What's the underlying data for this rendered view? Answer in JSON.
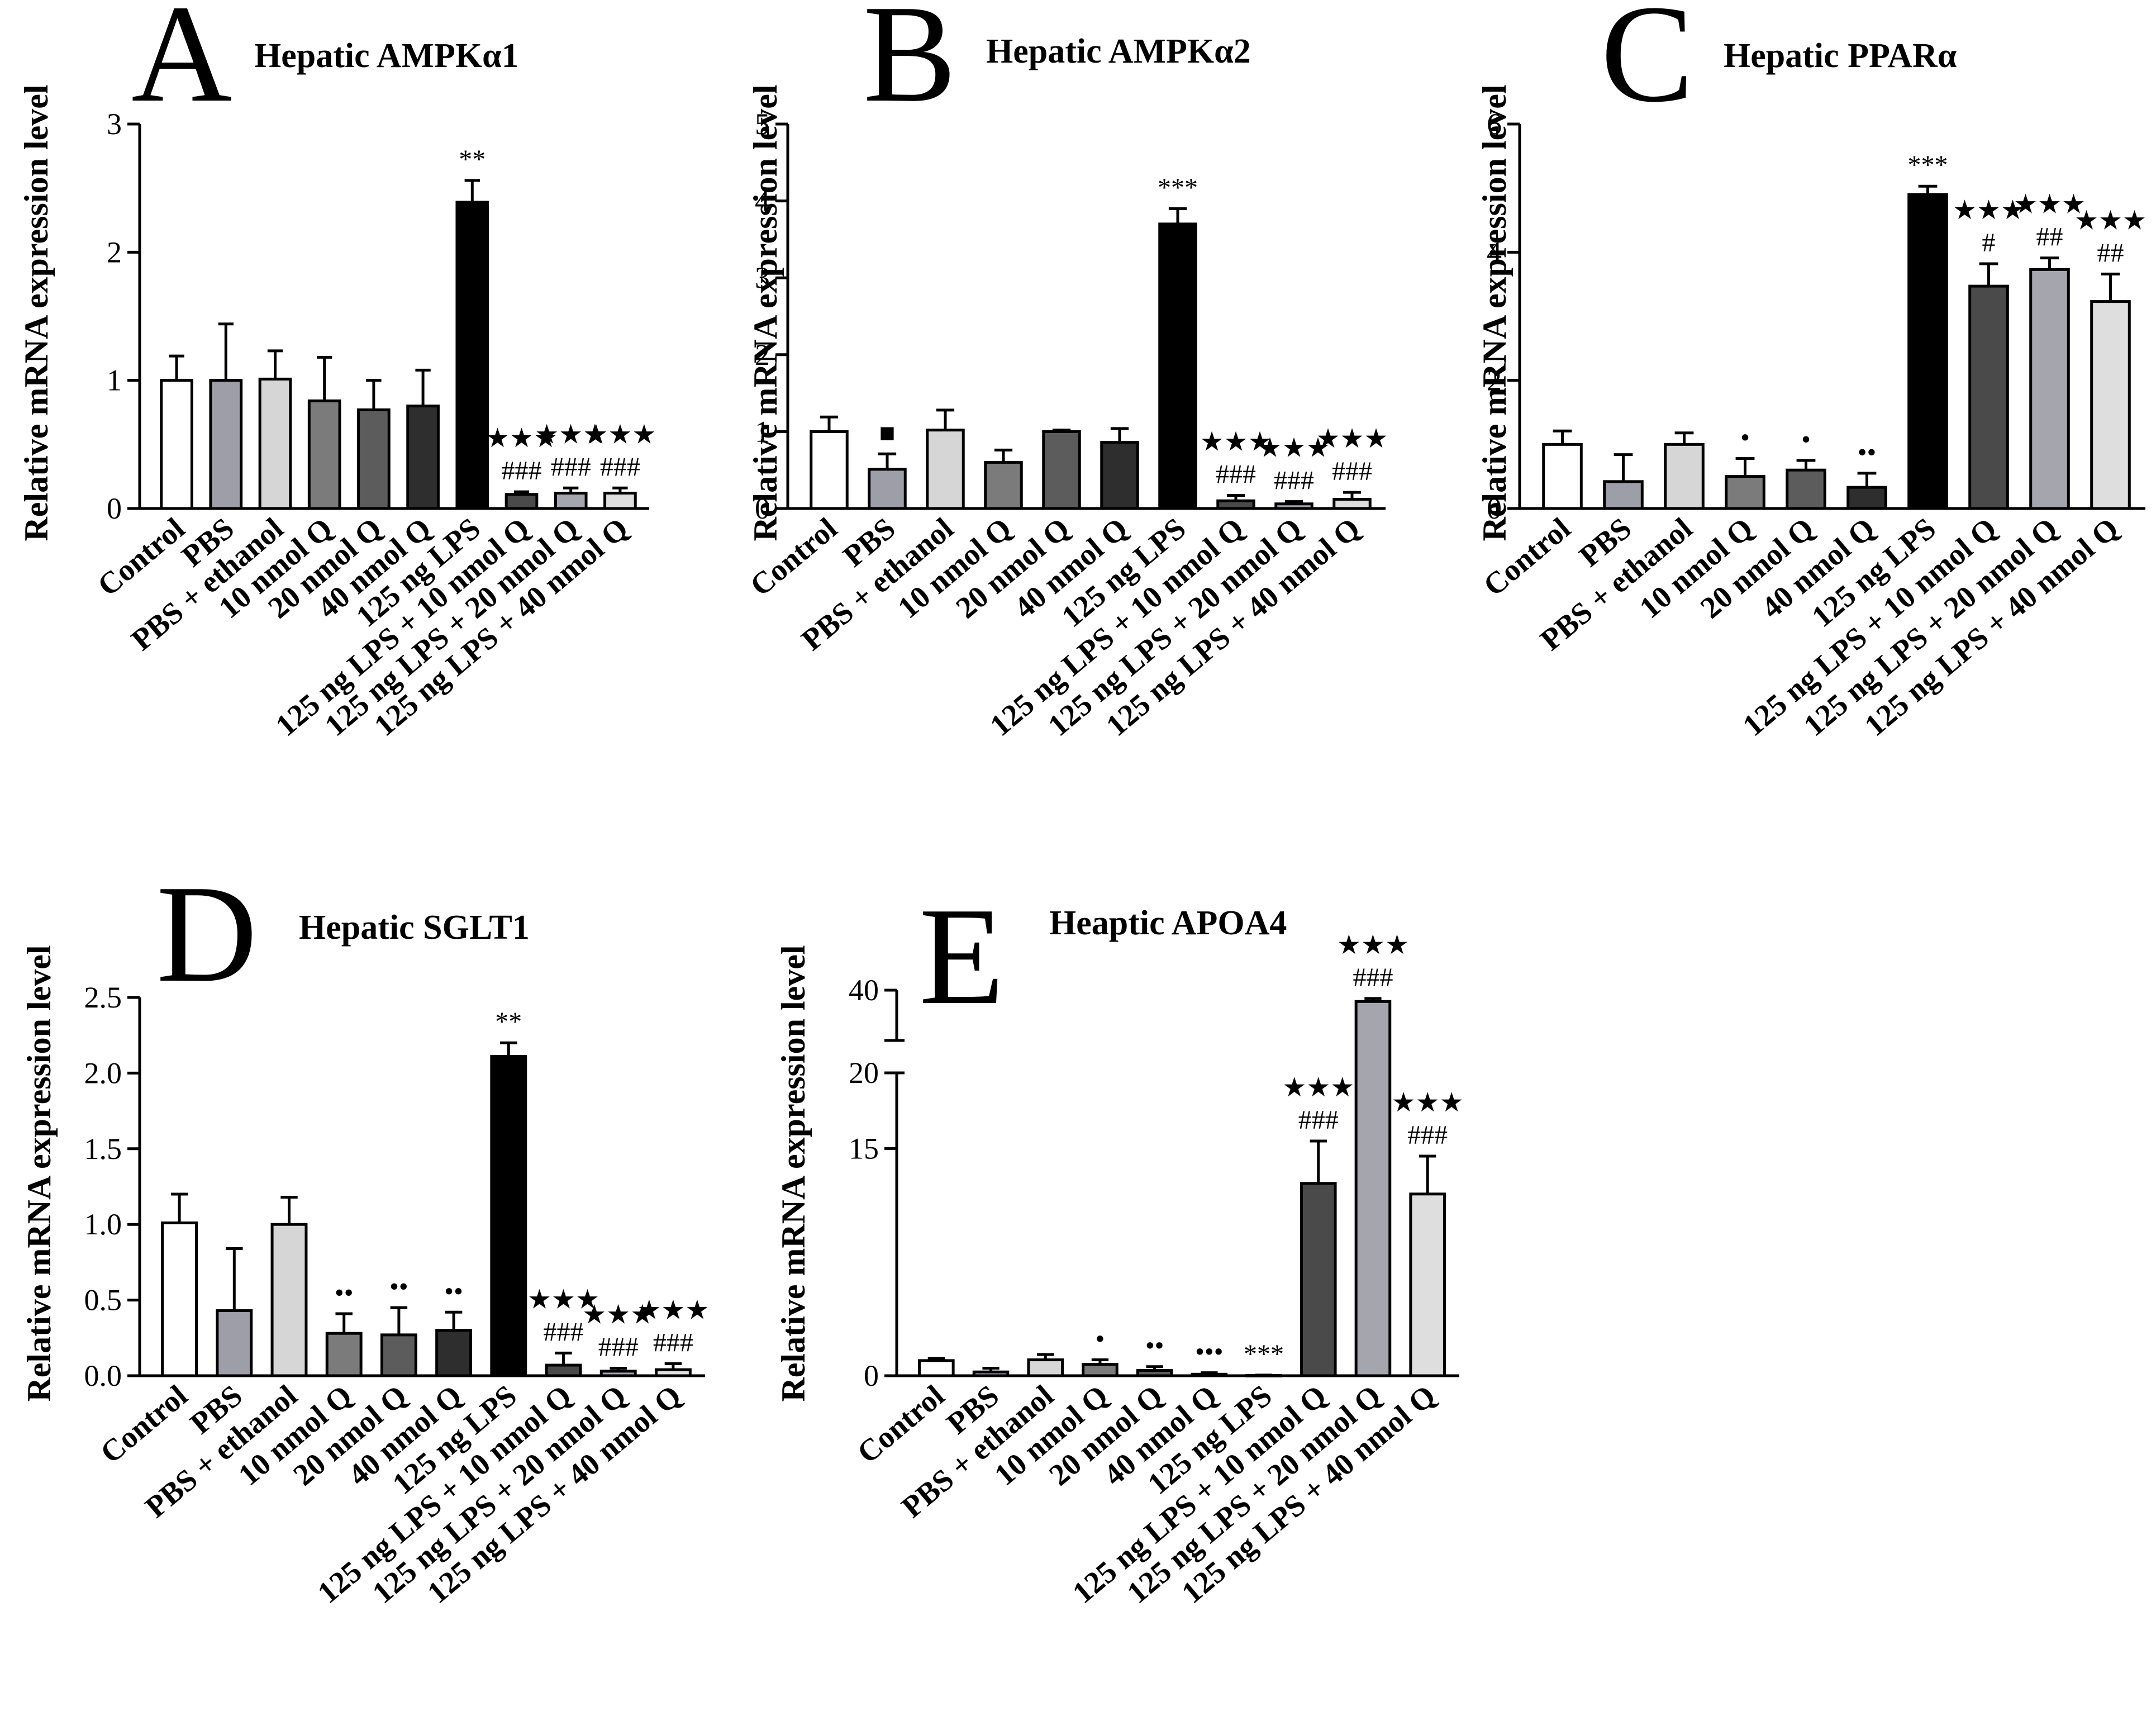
{
  "groups": [
    "Control",
    "PBS",
    "PBS + ethanol",
    "10 nmol Q",
    "20 nmol Q",
    "40 nmol Q",
    "125 ng LPS",
    "125 ng LPS + 10 nmol Q",
    "125 ng LPS + 20 nmol Q",
    "125 ng LPS + 40 nmol Q"
  ],
  "bar_colors": [
    "#ffffff",
    "#9e9ea8",
    "#d6d6d6",
    "#7b7b7b",
    "#5c5c5c",
    "#2e2e2e",
    "#000000",
    "#4a4a4a",
    "#a5a5ae",
    "#dedede"
  ],
  "chart_data": [
    {
      "type": "bar",
      "panel": "A",
      "title": "Hepatic AMPKα1",
      "ylabel": "Relative mRNA expression level",
      "ylim": [
        0,
        3
      ],
      "yticks": [
        0,
        1,
        2,
        3
      ],
      "categories": [
        "Control",
        "PBS",
        "PBS + ethanol",
        "10 nmol Q",
        "20 nmol Q",
        "40 nmol Q",
        "125 ng LPS",
        "125 ng LPS + 10 nmol Q",
        "125 ng LPS + 20 nmol Q",
        "125 ng LPS + 40 nmol Q"
      ],
      "values": [
        1.0,
        1.0,
        1.01,
        0.84,
        0.77,
        0.8,
        2.39,
        0.11,
        0.12,
        0.12
      ],
      "errors": [
        0.19,
        0.44,
        0.22,
        0.34,
        0.23,
        0.28,
        0.17,
        0.02,
        0.04,
        0.04
      ],
      "annotations": [
        [],
        [],
        [],
        [],
        [],
        [],
        [
          "**"
        ],
        [
          "★★★",
          "###"
        ],
        [
          "★★★",
          "###"
        ],
        [
          "★★★",
          "###"
        ]
      ]
    },
    {
      "type": "bar",
      "panel": "B",
      "title": "Hepatic AMPKα2",
      "ylabel": "Relative mRNA expression level",
      "ylim": [
        0,
        5
      ],
      "yticks": [
        0,
        1,
        2,
        3,
        4,
        5
      ],
      "categories": [
        "Control",
        "PBS",
        "PBS + ethanol",
        "10 nmol Q",
        "20 nmol Q",
        "40 nmol Q",
        "125 ng LPS",
        "125 ng LPS + 10 nmol Q",
        "125 ng LPS + 20 nmol Q",
        "125 ng LPS + 40 nmol Q"
      ],
      "values": [
        1.0,
        0.51,
        1.02,
        0.6,
        1.0,
        0.86,
        3.7,
        0.1,
        0.06,
        0.12
      ],
      "errors": [
        0.19,
        0.2,
        0.26,
        0.16,
        0.02,
        0.18,
        0.2,
        0.07,
        0.03,
        0.09
      ],
      "annotations": [
        [],
        [
          "■"
        ],
        [],
        [],
        [],
        [],
        [
          "***"
        ],
        [
          "★★★",
          "###"
        ],
        [
          "★★★",
          "###"
        ],
        [
          "★★★",
          "###"
        ]
      ]
    },
    {
      "type": "bar",
      "panel": "C",
      "title": "Hepatic PPARα",
      "ylabel": "Relative mRNA expression level",
      "ylim": [
        0,
        6
      ],
      "yticks": [
        0,
        2,
        4,
        6
      ],
      "categories": [
        "Control",
        "PBS",
        "PBS + ethanol",
        "10 nmol Q",
        "20 nmol Q",
        "40 nmol Q",
        "125 ng LPS",
        "125 ng LPS + 10 nmol Q",
        "125 ng LPS + 20 nmol Q",
        "125 ng LPS + 40 nmol Q"
      ],
      "values": [
        1.0,
        0.42,
        1.0,
        0.5,
        0.6,
        0.33,
        4.9,
        3.47,
        3.73,
        3.23
      ],
      "errors": [
        0.21,
        0.42,
        0.18,
        0.28,
        0.15,
        0.22,
        0.13,
        0.35,
        0.18,
        0.43
      ],
      "annotations": [
        [],
        [],
        [],
        [
          "•"
        ],
        [
          "•"
        ],
        [
          "••"
        ],
        [
          "***"
        ],
        [
          "★★★",
          "#"
        ],
        [
          "★★★",
          "##"
        ],
        [
          "★★★",
          "##"
        ]
      ]
    },
    {
      "type": "bar",
      "panel": "D",
      "title": "Hepatic SGLT1",
      "ylabel": "Relative mRNA expression level",
      "ylim": [
        0,
        2.5
      ],
      "yticks": [
        "0.0",
        "0.5",
        "1.0",
        "1.5",
        "2.0",
        "2.5"
      ],
      "categories": [
        "Control",
        "PBS",
        "PBS + ethanol",
        "10 nmol Q",
        "20 nmol Q",
        "40 nmol Q",
        "125 ng LPS",
        "125 ng LPS + 10 nmol Q",
        "125 ng LPS + 20 nmol Q",
        "125 ng LPS + 40 nmol Q"
      ],
      "values": [
        1.01,
        0.43,
        1.0,
        0.28,
        0.27,
        0.3,
        2.11,
        0.07,
        0.03,
        0.04
      ],
      "errors": [
        0.19,
        0.41,
        0.18,
        0.13,
        0.18,
        0.12,
        0.09,
        0.08,
        0.02,
        0.04
      ],
      "annotations": [
        [],
        [],
        [],
        [
          "••"
        ],
        [
          "••"
        ],
        [
          "••"
        ],
        [
          "**"
        ],
        [
          "★★★",
          "###"
        ],
        [
          "★★★",
          "###"
        ],
        [
          "★★★",
          "###"
        ]
      ]
    },
    {
      "type": "bar",
      "panel": "E",
      "title": "Heaptic APOA4",
      "ylabel": "Relative mRNA expression level",
      "ylim": [
        0,
        40
      ],
      "yticks": [
        0,
        15,
        20,
        40
      ],
      "axis_break": [
        20,
        40
      ],
      "categories": [
        "Control",
        "PBS",
        "PBS + ethanol",
        "10 nmol Q",
        "20 nmol Q",
        "40 nmol Q",
        "125 ng LPS",
        "125 ng LPS + 10 nmol Q",
        "125 ng LPS + 20 nmol Q",
        "125 ng LPS + 40 nmol Q"
      ],
      "values": [
        1.0,
        0.25,
        1.05,
        0.75,
        0.35,
        0.1,
        0.02,
        12.7,
        35.5,
        12.0
      ],
      "errors": [
        0.15,
        0.25,
        0.35,
        0.3,
        0.25,
        0.1,
        0.02,
        2.8,
        1.2,
        2.5
      ],
      "annotations": [
        [],
        [],
        [],
        [
          "•"
        ],
        [
          "••"
        ],
        [
          "•••"
        ],
        [
          "***"
        ],
        [
          "★★★",
          "###"
        ],
        [
          "★★★",
          "###"
        ],
        [
          "★★★",
          "###"
        ]
      ]
    }
  ]
}
